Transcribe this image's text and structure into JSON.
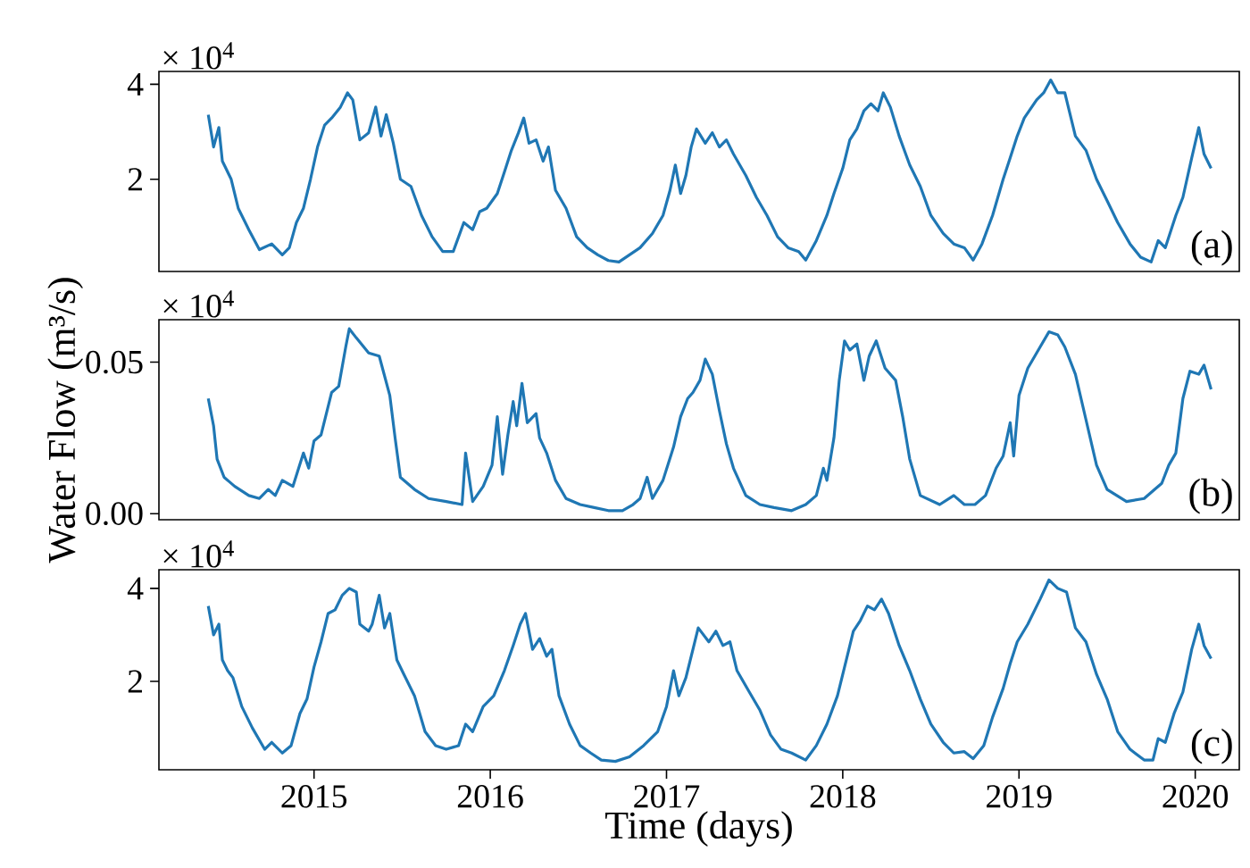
{
  "chart_data": [
    {
      "type": "line",
      "color": "#1f77b4",
      "xlim": [
        2014.12,
        2020.25
      ],
      "ylim": [
        0.06,
        4.27
      ],
      "yticks": [
        2,
        4
      ],
      "tick_labels": "y",
      "annotations": [
        "× 10$^{4}$",
        "(a)"
      ],
      "x": [
        2014.4,
        2014.43,
        2014.46,
        2014.48,
        2014.5,
        2014.53,
        2014.57,
        2014.63,
        2014.69,
        2014.76,
        2014.82,
        2014.86,
        2014.9,
        2014.94,
        2014.98,
        2015.02,
        2015.06,
        2015.1,
        2015.15,
        2015.19,
        2015.22,
        2015.26,
        2015.31,
        2015.35,
        2015.38,
        2015.41,
        2015.45,
        2015.49,
        2015.55,
        2015.61,
        2015.67,
        2015.73,
        2015.79,
        2015.85,
        2015.9,
        2015.94,
        2015.98,
        2016.04,
        2016.08,
        2016.12,
        2016.16,
        2016.19,
        2016.22,
        2016.26,
        2016.3,
        2016.33,
        2016.37,
        2016.43,
        2016.49,
        2016.55,
        2016.61,
        2016.67,
        2016.73,
        2016.79,
        2016.85,
        2016.92,
        2016.98,
        2017.02,
        2017.05,
        2017.08,
        2017.11,
        2017.14,
        2017.17,
        2017.22,
        2017.26,
        2017.3,
        2017.34,
        2017.38,
        2017.45,
        2017.51,
        2017.57,
        2017.63,
        2017.69,
        2017.75,
        2017.79,
        2017.85,
        2017.91,
        2017.95,
        2018.0,
        2018.04,
        2018.08,
        2018.12,
        2018.16,
        2018.2,
        2018.23,
        2018.27,
        2018.32,
        2018.38,
        2018.44,
        2018.5,
        2018.57,
        2018.63,
        2018.69,
        2018.74,
        2018.79,
        2018.85,
        2018.91,
        2018.95,
        2018.99,
        2019.03,
        2019.1,
        2019.14,
        2019.18,
        2019.22,
        2019.26,
        2019.32,
        2019.38,
        2019.44,
        2019.5,
        2019.56,
        2019.63,
        2019.69,
        2019.75,
        2019.79,
        2019.83,
        2019.89,
        2019.93,
        2019.98,
        2020.02,
        2020.05,
        2020.09
      ],
      "values": [
        3.36,
        2.68,
        3.09,
        2.38,
        2.23,
        2.0,
        1.39,
        0.94,
        0.52,
        0.64,
        0.41,
        0.56,
        1.09,
        1.39,
        2.0,
        2.68,
        3.14,
        3.29,
        3.52,
        3.82,
        3.67,
        2.83,
        2.98,
        3.52,
        2.91,
        3.36,
        2.76,
        2.0,
        1.85,
        1.24,
        0.79,
        0.48,
        0.48,
        1.09,
        0.94,
        1.32,
        1.39,
        1.7,
        2.15,
        2.61,
        2.98,
        3.29,
        2.76,
        2.83,
        2.38,
        2.68,
        1.77,
        1.39,
        0.79,
        0.56,
        0.41,
        0.29,
        0.26,
        0.41,
        0.56,
        0.86,
        1.24,
        1.77,
        2.3,
        1.7,
        2.08,
        2.68,
        3.06,
        2.76,
        2.98,
        2.68,
        2.83,
        2.53,
        2.08,
        1.62,
        1.24,
        0.79,
        0.56,
        0.48,
        0.3,
        0.71,
        1.24,
        1.7,
        2.23,
        2.83,
        3.06,
        3.44,
        3.59,
        3.44,
        3.82,
        3.52,
        2.91,
        2.3,
        1.85,
        1.24,
        0.86,
        0.64,
        0.56,
        0.3,
        0.64,
        1.24,
        2.0,
        2.45,
        2.91,
        3.29,
        3.67,
        3.82,
        4.09,
        3.82,
        3.82,
        2.91,
        2.61,
        2.0,
        1.55,
        1.09,
        0.64,
        0.36,
        0.26,
        0.71,
        0.56,
        1.24,
        1.62,
        2.45,
        3.09,
        2.53,
        2.23
      ]
    },
    {
      "type": "line",
      "color": "#1f77b4",
      "xlim": [
        2014.12,
        2020.25
      ],
      "ylim": [
        -0.002,
        0.064
      ],
      "yticks": [
        {
          "value": 0,
          "label": "0.00"
        },
        {
          "value": 0.05,
          "label": "0.05"
        }
      ],
      "tick_labels": "y",
      "ylabel": "Water Flow (m³/s)",
      "annotations": [
        "× 10$^{4}$",
        "(b)"
      ],
      "x": [
        2014.4,
        2014.43,
        2014.45,
        2014.49,
        2014.55,
        2014.63,
        2014.69,
        2014.74,
        2014.78,
        2014.82,
        2014.88,
        2014.94,
        2014.97,
        2015.0,
        2015.04,
        2015.07,
        2015.1,
        2015.14,
        2015.18,
        2015.2,
        2015.24,
        2015.31,
        2015.37,
        2015.43,
        2015.46,
        2015.49,
        2015.57,
        2015.65,
        2015.75,
        2015.84,
        2015.86,
        2015.9,
        2015.96,
        2016.01,
        2016.04,
        2016.07,
        2016.1,
        2016.13,
        2016.15,
        2016.18,
        2016.21,
        2016.26,
        2016.28,
        2016.32,
        2016.37,
        2016.43,
        2016.51,
        2016.59,
        2016.67,
        2016.75,
        2016.81,
        2016.85,
        2016.89,
        2016.92,
        2016.98,
        2017.04,
        2017.08,
        2017.12,
        2017.15,
        2017.19,
        2017.22,
        2017.26,
        2017.3,
        2017.34,
        2017.38,
        2017.45,
        2017.53,
        2017.61,
        2017.71,
        2017.79,
        2017.85,
        2017.89,
        2017.91,
        2017.95,
        2017.98,
        2018.01,
        2018.04,
        2018.08,
        2018.12,
        2018.15,
        2018.19,
        2018.24,
        2018.3,
        2018.34,
        2018.38,
        2018.44,
        2018.55,
        2018.63,
        2018.69,
        2018.75,
        2018.81,
        2018.87,
        2018.91,
        2018.95,
        2018.97,
        2019.0,
        2019.05,
        2019.12,
        2019.17,
        2019.22,
        2019.26,
        2019.32,
        2019.38,
        2019.44,
        2019.5,
        2019.61,
        2019.71,
        2019.77,
        2019.81,
        2019.85,
        2019.89,
        2019.93,
        2019.97,
        2020.02,
        2020.05,
        2020.09
      ],
      "values": [
        0.038,
        0.029,
        0.018,
        0.012,
        0.009,
        0.006,
        0.005,
        0.008,
        0.006,
        0.011,
        0.009,
        0.02,
        0.015,
        0.024,
        0.026,
        0.033,
        0.04,
        0.042,
        0.055,
        0.061,
        0.058,
        0.053,
        0.052,
        0.039,
        0.025,
        0.012,
        0.008,
        0.005,
        0.004,
        0.003,
        0.02,
        0.004,
        0.009,
        0.016,
        0.032,
        0.013,
        0.026,
        0.037,
        0.029,
        0.043,
        0.03,
        0.033,
        0.025,
        0.02,
        0.011,
        0.005,
        0.003,
        0.002,
        0.001,
        0.001,
        0.003,
        0.005,
        0.012,
        0.005,
        0.011,
        0.022,
        0.032,
        0.038,
        0.04,
        0.044,
        0.051,
        0.046,
        0.034,
        0.023,
        0.015,
        0.006,
        0.003,
        0.002,
        0.001,
        0.003,
        0.006,
        0.015,
        0.011,
        0.025,
        0.044,
        0.057,
        0.054,
        0.056,
        0.044,
        0.052,
        0.057,
        0.048,
        0.044,
        0.032,
        0.018,
        0.006,
        0.003,
        0.006,
        0.003,
        0.003,
        0.006,
        0.015,
        0.019,
        0.03,
        0.019,
        0.039,
        0.048,
        0.055,
        0.06,
        0.059,
        0.055,
        0.046,
        0.031,
        0.016,
        0.008,
        0.004,
        0.005,
        0.008,
        0.01,
        0.016,
        0.02,
        0.038,
        0.047,
        0.046,
        0.049,
        0.041
      ]
    },
    {
      "type": "line",
      "color": "#1f77b4",
      "xlim": [
        2014.12,
        2020.25
      ],
      "ylim": [
        0.1,
        4.4
      ],
      "xticks": [
        2015,
        2016,
        2017,
        2018,
        2019,
        2020
      ],
      "yticks": [
        2,
        4
      ],
      "xlabel": "Time (days)",
      "annotations": [
        "× 10$^{4}$",
        "(c)"
      ],
      "x": [
        2014.4,
        2014.43,
        2014.46,
        2014.48,
        2014.51,
        2014.54,
        2014.59,
        2014.65,
        2014.72,
        2014.76,
        2014.82,
        2014.87,
        2014.92,
        2014.96,
        2015.0,
        2015.04,
        2015.08,
        2015.12,
        2015.16,
        2015.2,
        2015.24,
        2015.26,
        2015.31,
        2015.33,
        2015.37,
        2015.4,
        2015.43,
        2015.47,
        2015.51,
        2015.57,
        2015.63,
        2015.69,
        2015.75,
        2015.82,
        2015.86,
        2015.9,
        2015.96,
        2016.02,
        2016.08,
        2016.13,
        2016.17,
        2016.2,
        2016.24,
        2016.28,
        2016.32,
        2016.35,
        2016.39,
        2016.45,
        2016.51,
        2016.57,
        2016.63,
        2016.71,
        2016.79,
        2016.87,
        2016.95,
        2017.0,
        2017.04,
        2017.07,
        2017.11,
        2017.15,
        2017.18,
        2017.24,
        2017.28,
        2017.32,
        2017.36,
        2017.4,
        2017.47,
        2017.53,
        2017.59,
        2017.65,
        2017.71,
        2017.79,
        2017.85,
        2017.91,
        2017.97,
        2018.02,
        2018.06,
        2018.1,
        2018.14,
        2018.18,
        2018.22,
        2018.26,
        2018.32,
        2018.38,
        2018.44,
        2018.5,
        2018.57,
        2018.63,
        2018.69,
        2018.74,
        2018.8,
        2018.85,
        2018.91,
        2018.95,
        2018.99,
        2019.05,
        2019.12,
        2019.17,
        2019.22,
        2019.27,
        2019.32,
        2019.38,
        2019.44,
        2019.5,
        2019.56,
        2019.63,
        2019.71,
        2019.76,
        2019.79,
        2019.83,
        2019.88,
        2019.93,
        2019.98,
        2020.02,
        2020.05,
        2020.09
      ],
      "values": [
        3.62,
        3.0,
        3.23,
        2.46,
        2.23,
        2.08,
        1.46,
        1.0,
        0.54,
        0.69,
        0.46,
        0.62,
        1.31,
        1.62,
        2.31,
        2.85,
        3.46,
        3.54,
        3.85,
        4.0,
        3.92,
        3.23,
        3.08,
        3.23,
        3.85,
        3.15,
        3.46,
        2.46,
        2.15,
        1.69,
        0.92,
        0.62,
        0.54,
        0.62,
        1.08,
        0.92,
        1.46,
        1.69,
        2.23,
        2.77,
        3.23,
        3.46,
        2.69,
        2.92,
        2.54,
        2.69,
        1.69,
        1.08,
        0.62,
        0.46,
        0.31,
        0.28,
        0.38,
        0.62,
        0.92,
        1.46,
        2.23,
        1.69,
        2.08,
        2.69,
        3.15,
        2.85,
        3.08,
        2.77,
        2.85,
        2.23,
        1.77,
        1.38,
        0.85,
        0.54,
        0.46,
        0.31,
        0.62,
        1.08,
        1.69,
        2.46,
        3.08,
        3.31,
        3.62,
        3.54,
        3.77,
        3.46,
        2.77,
        2.23,
        1.62,
        1.08,
        0.69,
        0.46,
        0.49,
        0.34,
        0.62,
        1.23,
        1.85,
        2.38,
        2.85,
        3.23,
        3.77,
        4.18,
        4.0,
        3.92,
        3.15,
        2.85,
        2.15,
        1.62,
        0.92,
        0.54,
        0.31,
        0.31,
        0.77,
        0.69,
        1.31,
        1.77,
        2.69,
        3.23,
        2.77,
        2.49
      ]
    }
  ]
}
